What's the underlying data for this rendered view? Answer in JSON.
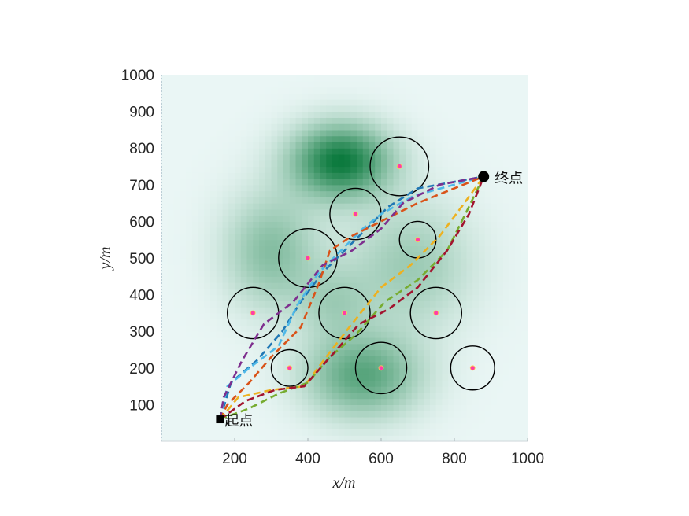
{
  "chart_data": {
    "type": "scatter",
    "title": "",
    "xlabel": "x/m",
    "ylabel": "y/m",
    "xlim": [
      0,
      1000
    ],
    "ylim": [
      0,
      1000
    ],
    "xticks": [
      "200",
      "400",
      "600",
      "800",
      "1000"
    ],
    "yticks": [
      "100",
      "200",
      "300",
      "400",
      "500",
      "600",
      "700",
      "800",
      "900",
      "1000"
    ],
    "grid": false,
    "colors": {
      "background_low": "#eaf6f5",
      "background_high": "#0c7a3e",
      "obstacle": "#000000",
      "obstacle_center": "#ff3da8"
    },
    "start": {
      "label": "起点",
      "x": 160,
      "y": 60
    },
    "goal": {
      "label": "终点",
      "x": 880,
      "y": 722
    },
    "obstacles": [
      {
        "x": 250,
        "y": 350,
        "r": 70
      },
      {
        "x": 350,
        "y": 200,
        "r": 50
      },
      {
        "x": 400,
        "y": 500,
        "r": 80
      },
      {
        "x": 500,
        "y": 350,
        "r": 70
      },
      {
        "x": 530,
        "y": 620,
        "r": 70
      },
      {
        "x": 600,
        "y": 200,
        "r": 70
      },
      {
        "x": 650,
        "y": 750,
        "r": 80
      },
      {
        "x": 700,
        "y": 550,
        "r": 50
      },
      {
        "x": 750,
        "y": 350,
        "r": 70
      },
      {
        "x": 850,
        "y": 200,
        "r": 60
      }
    ],
    "terrain_peaks": [
      {
        "x": 490,
        "y": 765,
        "h": 1.0,
        "sx": 95,
        "sy": 70
      },
      {
        "x": 300,
        "y": 520,
        "h": 0.45,
        "sx": 90,
        "sy": 110
      },
      {
        "x": 550,
        "y": 180,
        "h": 0.65,
        "sx": 110,
        "sy": 80
      },
      {
        "x": 680,
        "y": 480,
        "h": 0.35,
        "sx": 120,
        "sy": 120
      },
      {
        "x": 470,
        "y": 380,
        "h": 0.25,
        "sx": 70,
        "sy": 70
      }
    ],
    "series": [
      {
        "color": "#1f77b4",
        "points": [
          [
            160,
            60
          ],
          [
            190,
            160
          ],
          [
            260,
            220
          ],
          [
            330,
            300
          ],
          [
            380,
            380
          ],
          [
            440,
            460
          ],
          [
            500,
            520
          ],
          [
            560,
            580
          ],
          [
            620,
            640
          ],
          [
            700,
            690
          ],
          [
            880,
            722
          ]
        ]
      },
      {
        "color": "#4db8e8",
        "points": [
          [
            160,
            60
          ],
          [
            180,
            150
          ],
          [
            240,
            200
          ],
          [
            320,
            260
          ],
          [
            370,
            370
          ],
          [
            430,
            460
          ],
          [
            490,
            520
          ],
          [
            550,
            580
          ],
          [
            600,
            620
          ],
          [
            690,
            670
          ],
          [
            880,
            722
          ]
        ]
      },
      {
        "color": "#d95319",
        "points": [
          [
            160,
            60
          ],
          [
            180,
            100
          ],
          [
            240,
            160
          ],
          [
            300,
            230
          ],
          [
            380,
            310
          ],
          [
            430,
            430
          ],
          [
            460,
            520
          ],
          [
            520,
            560
          ],
          [
            600,
            600
          ],
          [
            700,
            650
          ],
          [
            880,
            722
          ]
        ]
      },
      {
        "color": "#7e2f8e",
        "points": [
          [
            160,
            60
          ],
          [
            170,
            120
          ],
          [
            220,
            220
          ],
          [
            280,
            320
          ],
          [
            360,
            380
          ],
          [
            440,
            480
          ],
          [
            520,
            520
          ],
          [
            600,
            580
          ],
          [
            660,
            650
          ],
          [
            760,
            700
          ],
          [
            880,
            722
          ]
        ]
      },
      {
        "color": "#edb120",
        "points": [
          [
            160,
            60
          ],
          [
            210,
            120
          ],
          [
            300,
            140
          ],
          [
            390,
            150
          ],
          [
            450,
            230
          ],
          [
            520,
            320
          ],
          [
            600,
            420
          ],
          [
            680,
            480
          ],
          [
            760,
            560
          ],
          [
            820,
            640
          ],
          [
            880,
            722
          ]
        ]
      },
      {
        "color": "#77ac30",
        "points": [
          [
            160,
            60
          ],
          [
            240,
            90
          ],
          [
            320,
            130
          ],
          [
            400,
            160
          ],
          [
            460,
            230
          ],
          [
            530,
            290
          ],
          [
            610,
            380
          ],
          [
            700,
            440
          ],
          [
            780,
            520
          ],
          [
            830,
            620
          ],
          [
            880,
            722
          ]
        ]
      },
      {
        "color": "#a2142f",
        "points": [
          [
            160,
            60
          ],
          [
            230,
            110
          ],
          [
            310,
            140
          ],
          [
            390,
            150
          ],
          [
            470,
            240
          ],
          [
            540,
            320
          ],
          [
            620,
            360
          ],
          [
            700,
            420
          ],
          [
            780,
            520
          ],
          [
            840,
            620
          ],
          [
            880,
            722
          ]
        ]
      }
    ]
  }
}
